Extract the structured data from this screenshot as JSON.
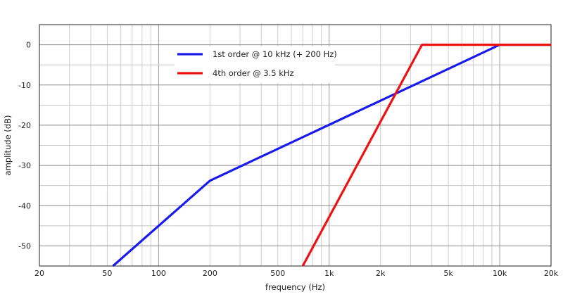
{
  "chart_data": {
    "type": "line",
    "title": "",
    "xlabel": "frequency (Hz)",
    "ylabel": "amplitude (dB)",
    "x_scale": "log",
    "xlim": [
      20,
      20000
    ],
    "ylim": [
      -55,
      5
    ],
    "grid": true,
    "legend_position": "top-left",
    "x_ticks": [
      {
        "value": 20,
        "label": "20"
      },
      {
        "value": 50,
        "label": "50"
      },
      {
        "value": 100,
        "label": "100"
      },
      {
        "value": 200,
        "label": "200"
      },
      {
        "value": 500,
        "label": "500"
      },
      {
        "value": 1000,
        "label": "1k"
      },
      {
        "value": 2000,
        "label": "2k"
      },
      {
        "value": 5000,
        "label": "5k"
      },
      {
        "value": 10000,
        "label": "10k"
      },
      {
        "value": 20000,
        "label": "20k"
      }
    ],
    "y_ticks": [
      {
        "value": 0,
        "label": "0"
      },
      {
        "value": -10,
        "label": "-10"
      },
      {
        "value": -20,
        "label": "-20"
      },
      {
        "value": -30,
        "label": "-30"
      },
      {
        "value": -40,
        "label": "-40"
      },
      {
        "value": -50,
        "label": "-50"
      }
    ],
    "series": [
      {
        "name": "1st order @ 10 kHz (+ 200 Hz)",
        "color": "#1a1aee",
        "points": [
          [
            54,
            -55
          ],
          [
            200,
            -33.8
          ],
          [
            10000,
            0
          ],
          [
            20000,
            0
          ]
        ]
      },
      {
        "name": "4th order @ 3.5 kHz",
        "color": "#ee1111",
        "points": [
          [
            700,
            -55
          ],
          [
            3500,
            0
          ],
          [
            20000,
            0
          ]
        ]
      }
    ]
  }
}
